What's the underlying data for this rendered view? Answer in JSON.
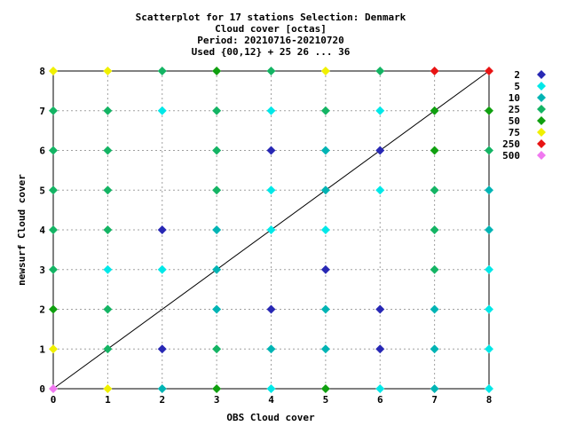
{
  "chart_data": {
    "type": "scatter",
    "title_lines": [
      "Scatterplot for   17 stations Selection: Denmark",
      "Cloud cover [octas]",
      "Period: 20210716-20210720",
      "Used {00,12} + 25 26 ... 36"
    ],
    "xlabel": "OBS Cloud cover",
    "ylabel": "newsurf Cloud cover",
    "xlim": [
      0,
      8
    ],
    "ylim": [
      0,
      8
    ],
    "xticks": [
      0,
      1,
      2,
      3,
      4,
      5,
      6,
      7,
      8
    ],
    "yticks": [
      0,
      1,
      2,
      3,
      4,
      5,
      6,
      7,
      8
    ],
    "grid": true,
    "diagonal_line": true,
    "legend_placement": "right",
    "legend": [
      {
        "label": "2",
        "color": "#2828b4"
      },
      {
        "label": "5",
        "color": "#00e8e8"
      },
      {
        "label": "10",
        "color": "#00b4b4"
      },
      {
        "label": "25",
        "color": "#14b464"
      },
      {
        "label": "50",
        "color": "#10a010"
      },
      {
        "label": "75",
        "color": "#f0f000"
      },
      {
        "label": "250",
        "color": "#e81414"
      },
      {
        "label": "500",
        "color": "#f078f0"
      }
    ],
    "points": [
      {
        "x": 0,
        "y": 8,
        "c": "75"
      },
      {
        "x": 1,
        "y": 8,
        "c": "75"
      },
      {
        "x": 2,
        "y": 8,
        "c": "25"
      },
      {
        "x": 3,
        "y": 8,
        "c": "50"
      },
      {
        "x": 4,
        "y": 8,
        "c": "25"
      },
      {
        "x": 5,
        "y": 8,
        "c": "75"
      },
      {
        "x": 6,
        "y": 8,
        "c": "25"
      },
      {
        "x": 7,
        "y": 8,
        "c": "250"
      },
      {
        "x": 8,
        "y": 8,
        "c": "250"
      },
      {
        "x": 0,
        "y": 7,
        "c": "25"
      },
      {
        "x": 1,
        "y": 7,
        "c": "25"
      },
      {
        "x": 2,
        "y": 7,
        "c": "5"
      },
      {
        "x": 3,
        "y": 7,
        "c": "25"
      },
      {
        "x": 4,
        "y": 7,
        "c": "5"
      },
      {
        "x": 5,
        "y": 7,
        "c": "25"
      },
      {
        "x": 6,
        "y": 7,
        "c": "5"
      },
      {
        "x": 7,
        "y": 7,
        "c": "50"
      },
      {
        "x": 8,
        "y": 7,
        "c": "50"
      },
      {
        "x": 0,
        "y": 6,
        "c": "25"
      },
      {
        "x": 1,
        "y": 6,
        "c": "25"
      },
      {
        "x": 3,
        "y": 6,
        "c": "25"
      },
      {
        "x": 4,
        "y": 6,
        "c": "2"
      },
      {
        "x": 5,
        "y": 6,
        "c": "10"
      },
      {
        "x": 6,
        "y": 6,
        "c": "2"
      },
      {
        "x": 7,
        "y": 6,
        "c": "50"
      },
      {
        "x": 8,
        "y": 6,
        "c": "25"
      },
      {
        "x": 0,
        "y": 5,
        "c": "25"
      },
      {
        "x": 1,
        "y": 5,
        "c": "25"
      },
      {
        "x": 3,
        "y": 5,
        "c": "25"
      },
      {
        "x": 4,
        "y": 5,
        "c": "5"
      },
      {
        "x": 5,
        "y": 5,
        "c": "10"
      },
      {
        "x": 6,
        "y": 5,
        "c": "5"
      },
      {
        "x": 7,
        "y": 5,
        "c": "25"
      },
      {
        "x": 8,
        "y": 5,
        "c": "10"
      },
      {
        "x": 0,
        "y": 4,
        "c": "25"
      },
      {
        "x": 1,
        "y": 4,
        "c": "25"
      },
      {
        "x": 2,
        "y": 4,
        "c": "2"
      },
      {
        "x": 3,
        "y": 4,
        "c": "10"
      },
      {
        "x": 4,
        "y": 4,
        "c": "5"
      },
      {
        "x": 5,
        "y": 4,
        "c": "5"
      },
      {
        "x": 7,
        "y": 4,
        "c": "25"
      },
      {
        "x": 8,
        "y": 4,
        "c": "10"
      },
      {
        "x": 0,
        "y": 3,
        "c": "25"
      },
      {
        "x": 1,
        "y": 3,
        "c": "5"
      },
      {
        "x": 2,
        "y": 3,
        "c": "5"
      },
      {
        "x": 3,
        "y": 3,
        "c": "10"
      },
      {
        "x": 5,
        "y": 3,
        "c": "2"
      },
      {
        "x": 7,
        "y": 3,
        "c": "25"
      },
      {
        "x": 8,
        "y": 3,
        "c": "5"
      },
      {
        "x": 0,
        "y": 2,
        "c": "50"
      },
      {
        "x": 1,
        "y": 2,
        "c": "25"
      },
      {
        "x": 3,
        "y": 2,
        "c": "10"
      },
      {
        "x": 4,
        "y": 2,
        "c": "2"
      },
      {
        "x": 5,
        "y": 2,
        "c": "10"
      },
      {
        "x": 6,
        "y": 2,
        "c": "2"
      },
      {
        "x": 7,
        "y": 2,
        "c": "10"
      },
      {
        "x": 8,
        "y": 2,
        "c": "5"
      },
      {
        "x": 0,
        "y": 1,
        "c": "75"
      },
      {
        "x": 1,
        "y": 1,
        "c": "25"
      },
      {
        "x": 2,
        "y": 1,
        "c": "2"
      },
      {
        "x": 3,
        "y": 1,
        "c": "25"
      },
      {
        "x": 4,
        "y": 1,
        "c": "10"
      },
      {
        "x": 5,
        "y": 1,
        "c": "10"
      },
      {
        "x": 6,
        "y": 1,
        "c": "2"
      },
      {
        "x": 7,
        "y": 1,
        "c": "10"
      },
      {
        "x": 8,
        "y": 1,
        "c": "5"
      },
      {
        "x": 0,
        "y": 0,
        "c": "500"
      },
      {
        "x": 1,
        "y": 0,
        "c": "75"
      },
      {
        "x": 2,
        "y": 0,
        "c": "10"
      },
      {
        "x": 3,
        "y": 0,
        "c": "50"
      },
      {
        "x": 4,
        "y": 0,
        "c": "5"
      },
      {
        "x": 5,
        "y": 0,
        "c": "50"
      },
      {
        "x": 6,
        "y": 0,
        "c": "5"
      },
      {
        "x": 7,
        "y": 0,
        "c": "10"
      },
      {
        "x": 8,
        "y": 0,
        "c": "5"
      }
    ]
  }
}
